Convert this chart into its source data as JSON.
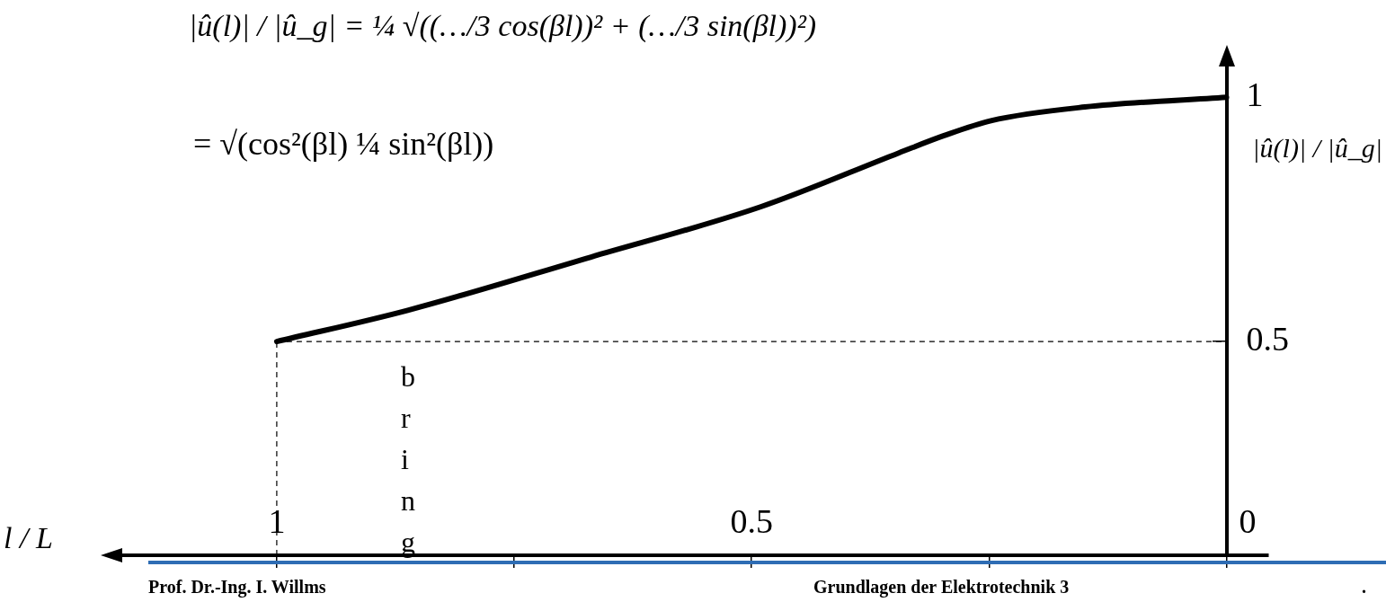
{
  "chart_data": {
    "type": "line",
    "xlabel": "l / L",
    "ylabel": "|û(l)| / |û_g|",
    "annotations": [
      "|û(l)| / |û_g| = ¼ √((…/3 cos(βl))² + (…/3 sin(βl))²)",
      "= √(cos²(βl) ¼ sin²(βl))",
      "bring",
      "Prof. Dr.-Ing. I. Willms",
      "Grundlagen der Elektrotechnik 3",
      "."
    ],
    "x": [
      1,
      0.862,
      0.669,
      0.49,
      0.345,
      0.298,
      0.248,
      0.149,
      0
    ],
    "series": [
      {
        "color": "#000000",
        "values": [
          0.5,
          0.564,
          0.673,
          0.776,
          0.886,
          0.921,
          0.952,
          0.98,
          1
        ]
      }
    ],
    "xlim": [
      1.175,
      -0.044
    ],
    "ylim": [
      0.0625,
      1.085
    ],
    "xticks": [
      1,
      {
        "value": 0.75,
        "label": null
      },
      0.5,
      {
        "value": 0.25,
        "label": null
      },
      0
    ],
    "yticks": [
      0.5,
      1
    ],
    "ref_lines": [
      {
        "axis": "x",
        "value": 1,
        "line_style": "dashed"
      },
      {
        "axis": "y",
        "value": 0.5,
        "line_style": "dashed"
      }
    ],
    "grid": false,
    "legend": false,
    "marker": "none",
    "line_style": "solid"
  }
}
